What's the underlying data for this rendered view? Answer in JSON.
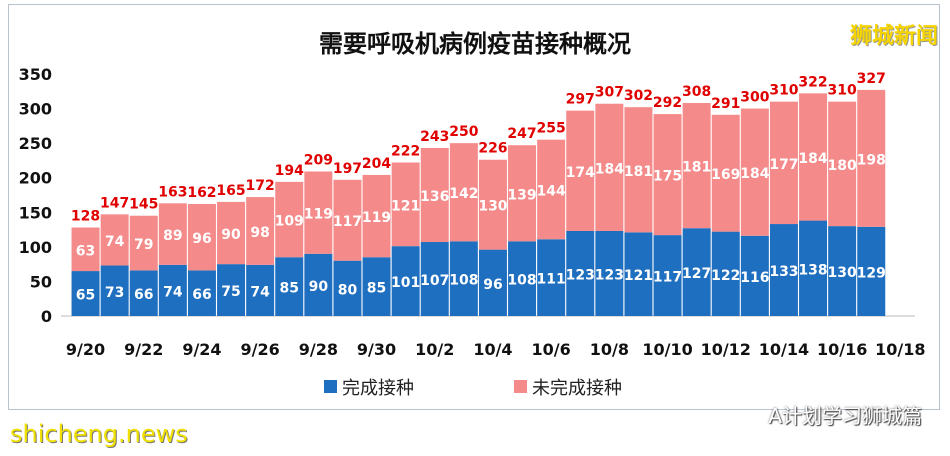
{
  "chart_data": {
    "type": "bar",
    "stacked": true,
    "title": "需要呼吸机病例疫苗接种概况",
    "xlabel": "",
    "ylabel": "",
    "ylim": [
      0,
      350
    ],
    "yticks": [
      0,
      50,
      100,
      150,
      200,
      250,
      300,
      350
    ],
    "categories": [
      "9/20",
      "9/21",
      "9/22",
      "9/23",
      "9/24",
      "9/25",
      "9/26",
      "9/27",
      "9/28",
      "9/29",
      "9/30",
      "10/1",
      "10/2",
      "10/3",
      "10/4",
      "10/5",
      "10/6",
      "10/7",
      "10/8",
      "10/9",
      "10/10",
      "10/11",
      "10/12",
      "10/13",
      "10/14",
      "10/15",
      "10/16",
      "10/17"
    ],
    "xtick_labels": [
      "9/20",
      "9/22",
      "9/24",
      "9/26",
      "9/28",
      "9/30",
      "10/2",
      "10/4",
      "10/6",
      "10/8",
      "10/10",
      "10/12",
      "10/14",
      "10/16",
      "10/18"
    ],
    "series": [
      {
        "name": "完成接种",
        "color": "#1F6FC0",
        "values": [
          65,
          73,
          66,
          74,
          66,
          75,
          74,
          85,
          90,
          80,
          85,
          101,
          107,
          108,
          96,
          108,
          111,
          123,
          123,
          121,
          117,
          127,
          122,
          116,
          133,
          138,
          130,
          129
        ]
      },
      {
        "name": "未完成接种",
        "color": "#F48A8A",
        "values": [
          63,
          74,
          79,
          89,
          96,
          90,
          98,
          109,
          119,
          117,
          119,
          121,
          136,
          142,
          130,
          139,
          144,
          174,
          184,
          181,
          175,
          181,
          169,
          184,
          177,
          184,
          180,
          198
        ]
      }
    ],
    "totals": [
      128,
      147,
      145,
      163,
      162,
      165,
      172,
      194,
      209,
      197,
      204,
      222,
      243,
      250,
      226,
      247,
      255,
      297,
      307,
      302,
      292,
      308,
      291,
      300,
      310,
      322,
      310,
      327
    ],
    "total_label_color": "#E00000",
    "legend": "bottom",
    "grid": false
  },
  "watermarks": {
    "brand": "狮城新闻",
    "site": "shicheng.news",
    "wechat": "A计划学习狮城篇"
  }
}
